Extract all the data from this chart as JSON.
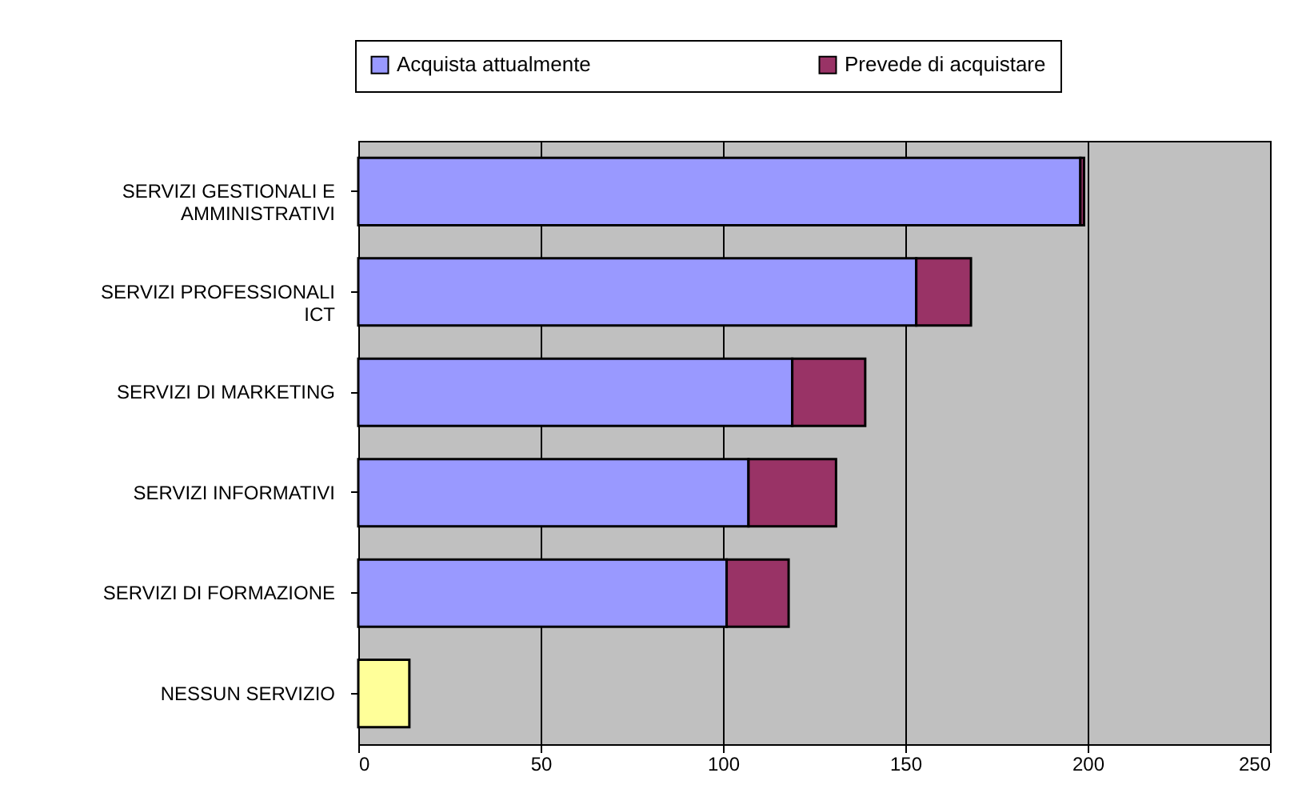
{
  "chart_data": {
    "type": "bar",
    "orientation": "horizontal",
    "stacked": true,
    "categories": [
      "SERVIZI GESTIONALI E AMMINISTRATIVI",
      "SERVIZI PROFESSIONALI ICT",
      "SERVIZI DI MARKETING",
      "SERVIZI INFORMATIVI",
      "SERVIZI DI FORMAZIONE",
      "NESSUN SERVIZIO"
    ],
    "series": [
      {
        "name": "Acquista attualmente",
        "color": "#9999ff",
        "colors": [
          "#9999ff",
          "#9999ff",
          "#9999ff",
          "#9999ff",
          "#9999ff",
          "#ffff99"
        ],
        "values": [
          198,
          153,
          119,
          107,
          101,
          14
        ]
      },
      {
        "name": "Prevede di acquistare",
        "color": "#993366",
        "values": [
          1,
          15,
          20,
          24,
          17,
          null
        ]
      }
    ],
    "xlim": [
      0,
      250
    ],
    "xticks": [
      0,
      50,
      100,
      150,
      200,
      250
    ],
    "grid": "x",
    "legend": "top"
  }
}
